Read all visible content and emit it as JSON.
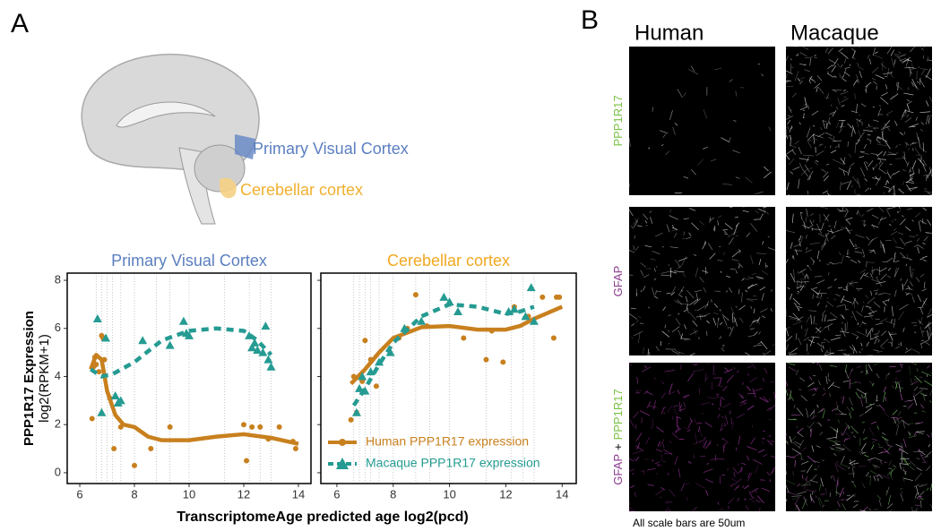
{
  "figure": {
    "panel_a": "A",
    "panel_b": "B",
    "xlabel": "TranscriptomeAge predicted age log2(pcd)",
    "brain_labels": [
      {
        "text": "Primary Visual Cortex",
        "color": "#5b7fc0"
      },
      {
        "text": "Cerebellar cortex",
        "color": "#f0b030"
      }
    ],
    "columns": [
      "Human",
      "Macaque"
    ],
    "rows": [
      [
        {
          "text": "PPP1R17",
          "color": "#7ac143"
        }
      ],
      [
        {
          "text": "GFAP",
          "color": "#8b3a8f"
        }
      ],
      [
        {
          "text": "GFAP",
          "color": "#8b3a8f"
        },
        {
          "text": "+",
          "color": "#000000"
        },
        {
          "text": "PPP1R17",
          "color": "#7ac143"
        }
      ]
    ],
    "note": "All scale bars are 50um"
  },
  "chart_data": [
    {
      "type": "scatter",
      "title": "Primary Visual Cortex",
      "title_color": "#5b7fc0",
      "ylabel": [
        "PPP1R17 Expression",
        "log2(RPKM+1)"
      ],
      "xlim": [
        5.54,
        14.46
      ],
      "ylim": [
        -0.45,
        8.3
      ],
      "xticks": [
        6,
        8,
        10,
        12,
        14
      ],
      "yticks": [
        0,
        2,
        4,
        6,
        8
      ],
      "show_ytick_labels": true,
      "sample_ages": [
        6.6,
        6.8,
        7.0,
        7.2,
        7.5,
        8.0,
        8.8,
        9.3,
        10.0,
        11.3,
        12.2,
        12.6,
        13.0
      ],
      "series": [
        {
          "name": "Human PPP1R17 expression",
          "color": "#c8801e",
          "marker": "circle",
          "x": [
            6.45,
            6.5,
            6.55,
            6.6,
            6.7,
            6.8,
            6.85,
            6.9,
            7.1,
            7.25,
            7.5,
            8.0,
            8.6,
            9.3,
            12.0,
            12.1,
            12.3,
            12.6,
            12.9,
            13.3,
            13.8,
            13.9
          ],
          "values": [
            2.25,
            4.4,
            4.8,
            4.5,
            4.2,
            5.7,
            5.6,
            4.7,
            3.1,
            1.0,
            1.9,
            0.3,
            1.0,
            1.9,
            2.0,
            0.5,
            1.9,
            1.9,
            1.4,
            1.9,
            1.3,
            1.0
          ],
          "fit_x": [
            6.4,
            6.6,
            6.8,
            7.0,
            7.3,
            7.6,
            8.0,
            8.5,
            9.0,
            10.0,
            11.0,
            12.0,
            13.0,
            14.0
          ],
          "fit_values": [
            4.3,
            4.9,
            4.7,
            3.4,
            2.4,
            2.0,
            1.9,
            1.5,
            1.35,
            1.35,
            1.5,
            1.6,
            1.45,
            1.2
          ]
        },
        {
          "name": "Macaque PPP1R17 expression",
          "color": "#259b92",
          "marker": "triangle",
          "x": [
            6.65,
            6.8,
            6.95,
            7.3,
            7.4,
            7.5,
            8.3,
            9.3,
            9.8,
            9.9,
            10.0,
            12.2,
            12.3,
            12.4,
            12.5,
            12.7,
            12.8,
            12.9,
            13.0
          ],
          "values": [
            6.4,
            2.5,
            5.6,
            3.2,
            2.9,
            3.0,
            5.5,
            5.3,
            6.3,
            5.8,
            5.7,
            5.7,
            5.2,
            5.4,
            5.1,
            5.0,
            6.1,
            4.7,
            4.4
          ],
          "fit_x": [
            6.4,
            6.8,
            7.2,
            8.0,
            9.0,
            10.0,
            11.0,
            12.0,
            12.5,
            13.0
          ],
          "fit_values": [
            4.3,
            4.0,
            4.1,
            4.6,
            5.5,
            5.9,
            6.0,
            5.9,
            5.5,
            4.9
          ]
        }
      ]
    },
    {
      "type": "scatter",
      "title": "Cerebellar cortex",
      "title_color": "#f0a820",
      "xlim": [
        5.43,
        14.5
      ],
      "ylim": [
        -0.45,
        8.3
      ],
      "xticks": [
        6,
        8,
        10,
        12,
        14
      ],
      "yticks": [
        0,
        2,
        4,
        6,
        8
      ],
      "show_ytick_labels": false,
      "legend": "lower right",
      "sample_ages": [
        6.6,
        6.8,
        7.0,
        7.2,
        7.5,
        8.0,
        8.8,
        9.3,
        10.0,
        11.3,
        12.2,
        12.6,
        13.0
      ],
      "series": [
        {
          "name": "Human PPP1R17 expression",
          "color": "#c8801e",
          "marker": "circle",
          "x": [
            6.5,
            6.6,
            6.7,
            6.9,
            7.0,
            7.2,
            7.4,
            8.2,
            8.5,
            8.8,
            9.2,
            10.5,
            11.3,
            11.5,
            11.9,
            12.3,
            12.8,
            13.3,
            13.7,
            13.8,
            13.9
          ],
          "values": [
            2.2,
            4.0,
            2.5,
            3.8,
            5.5,
            4.7,
            3.6,
            5.6,
            6.0,
            7.4,
            6.1,
            5.6,
            4.7,
            5.9,
            4.6,
            6.9,
            6.5,
            7.3,
            5.6,
            7.3,
            7.3
          ],
          "fit_x": [
            6.5,
            7.0,
            7.5,
            8.0,
            9.0,
            10.0,
            11.0,
            12.0,
            12.5,
            13.0,
            14.0
          ],
          "fit_values": [
            3.7,
            4.3,
            5.0,
            5.6,
            6.05,
            6.1,
            5.95,
            5.95,
            6.1,
            6.4,
            6.9
          ]
        },
        {
          "name": "Macaque PPP1R17 expression",
          "color": "#259b92",
          "marker": "triangle",
          "x": [
            6.7,
            6.8,
            6.9,
            7.0,
            7.2,
            7.5,
            7.9,
            8.4,
            9.0,
            9.8,
            10.0,
            10.3,
            12.1,
            12.3,
            12.7,
            12.9,
            13.0
          ],
          "values": [
            2.5,
            3.5,
            4.0,
            3.4,
            4.2,
            4.6,
            5.0,
            6.0,
            6.3,
            7.3,
            7.1,
            6.7,
            6.7,
            6.8,
            6.5,
            7.7,
            6.3
          ],
          "fit_x": [
            6.6,
            7.0,
            7.5,
            8.0,
            9.0,
            10.0,
            11.0,
            12.0,
            12.5,
            13.0
          ],
          "fit_values": [
            2.8,
            3.5,
            4.5,
            5.4,
            6.5,
            7.0,
            6.9,
            6.6,
            6.7,
            6.9
          ]
        }
      ]
    }
  ]
}
